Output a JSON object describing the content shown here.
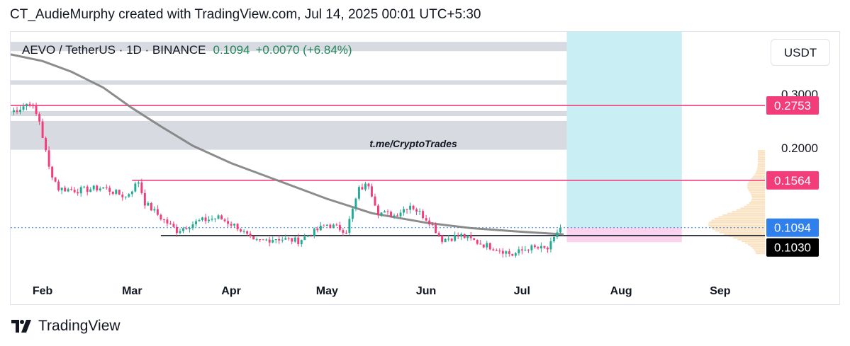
{
  "header": {
    "caption": "CT_AudieMurphy created with TradingView.com, Jul 14, 2025 00:01 UTC+5:30"
  },
  "symbol": {
    "name": "AEVO / TetherUS · 1D · BINANCE",
    "last_price": "0.1094",
    "change": "+0.0070 (+6.84%)"
  },
  "currency_button": {
    "label": "USDT"
  },
  "watermark": {
    "text": "t.me/CryptoTrades"
  },
  "footer": {
    "brand": "TradingView",
    "logo_icon": "tradingview-logo-icon"
  },
  "colors": {
    "up": "#22ab94",
    "down": "#f23d7a",
    "resistance": "#f23d7a",
    "ma": "#808080",
    "zone": "#d1d4dc",
    "projection_box": "#c9eef3",
    "target_box": "#fbd3ef",
    "last_price_tag": "#2f80ed",
    "support_tag": "#000000"
  },
  "chart_data": {
    "type": "candlestick",
    "symbol": "AEVO / TetherUS",
    "interval": "1D",
    "exchange": "BINANCE",
    "x_tick_labels": [
      "Feb",
      "Mar",
      "Apr",
      "May",
      "Jun",
      "Jul",
      "Aug",
      "Sep"
    ],
    "x_range": [
      "2025-01-22",
      "2025-09-15"
    ],
    "y_axis": {
      "scale": "log",
      "tick_labels": [
        "0.3000",
        "0.2000"
      ],
      "ticks": [
        0.3,
        0.2
      ],
      "range": [
        0.078,
        0.48
      ]
    },
    "price_tags": [
      {
        "label": "0.2753",
        "value": 0.2753,
        "kind": "resistance"
      },
      {
        "label": "0.1564",
        "value": 0.1564,
        "kind": "resistance"
      },
      {
        "label": "0.1094",
        "value": 0.1094,
        "kind": "last_price"
      },
      {
        "label": "0.1030",
        "value": 0.103,
        "kind": "support"
      }
    ],
    "horizontal_levels": [
      {
        "value": 0.2753,
        "from": "2025-01-22",
        "to": "2025-09-15",
        "style": "resistance"
      },
      {
        "value": 0.1564,
        "from": "2025-03-01",
        "to": "2025-09-15",
        "style": "resistance"
      },
      {
        "value": 0.103,
        "from": "2025-03-10",
        "to": "2025-09-15",
        "style": "support"
      }
    ],
    "zones": [
      {
        "from": "2025-01-22",
        "to": "2025-07-15",
        "low": 0.415,
        "high": 0.445
      },
      {
        "from": "2025-01-22",
        "to": "2025-07-15",
        "low": 0.322,
        "high": 0.333
      },
      {
        "from": "2025-01-22",
        "to": "2025-07-15",
        "low": 0.254,
        "high": 0.264
      },
      {
        "from": "2025-01-22",
        "to": "2025-07-15",
        "low": 0.197,
        "high": 0.245
      }
    ],
    "projection": {
      "from": "2025-07-15",
      "to": "2025-08-20",
      "entry": 0.1094,
      "target_high": 0.48,
      "stop_low": 0.098
    },
    "moving_average": [
      [
        "2025-01-22",
        0.405
      ],
      [
        "2025-02-01",
        0.385
      ],
      [
        "2025-02-10",
        0.355
      ],
      [
        "2025-02-20",
        0.315
      ],
      [
        "2025-03-01",
        0.27
      ],
      [
        "2025-03-10",
        0.235
      ],
      [
        "2025-03-20",
        0.203
      ],
      [
        "2025-04-01",
        0.178
      ],
      [
        "2025-04-15",
        0.157
      ],
      [
        "2025-05-01",
        0.136
      ],
      [
        "2025-05-15",
        0.122
      ],
      [
        "2025-06-01",
        0.1135
      ],
      [
        "2025-06-15",
        0.109
      ],
      [
        "2025-07-01",
        0.106
      ],
      [
        "2025-07-14",
        0.104
      ]
    ],
    "price_anchors": [
      [
        "2025-01-22",
        0.262
      ],
      [
        "2025-01-25",
        0.27
      ],
      [
        "2025-01-28",
        0.283
      ],
      [
        "2025-01-31",
        0.245
      ],
      [
        "2025-02-03",
        0.172
      ],
      [
        "2025-02-06",
        0.147
      ],
      [
        "2025-02-12",
        0.145
      ],
      [
        "2025-02-20",
        0.148
      ],
      [
        "2025-02-27",
        0.138
      ],
      [
        "2025-03-03",
        0.155
      ],
      [
        "2025-03-05",
        0.132
      ],
      [
        "2025-03-10",
        0.118
      ],
      [
        "2025-03-15",
        0.107
      ],
      [
        "2025-03-22",
        0.115
      ],
      [
        "2025-03-28",
        0.118
      ],
      [
        "2025-04-03",
        0.11
      ],
      [
        "2025-04-08",
        0.098
      ],
      [
        "2025-04-15",
        0.101
      ],
      [
        "2025-04-22",
        0.099
      ],
      [
        "2025-05-01",
        0.112
      ],
      [
        "2025-05-07",
        0.107
      ],
      [
        "2025-05-11",
        0.146
      ],
      [
        "2025-05-14",
        0.152
      ],
      [
        "2025-05-17",
        0.123
      ],
      [
        "2025-05-22",
        0.12
      ],
      [
        "2025-05-27",
        0.13
      ],
      [
        "2025-06-02",
        0.115
      ],
      [
        "2025-06-06",
        0.1
      ],
      [
        "2025-06-12",
        0.103
      ],
      [
        "2025-06-18",
        0.097
      ],
      [
        "2025-06-25",
        0.092
      ],
      [
        "2025-06-28",
        0.089
      ],
      [
        "2025-07-03",
        0.094
      ],
      [
        "2025-07-09",
        0.093
      ],
      [
        "2025-07-11",
        0.1
      ],
      [
        "2025-07-12",
        0.106
      ],
      [
        "2025-07-13",
        0.1094
      ]
    ]
  }
}
